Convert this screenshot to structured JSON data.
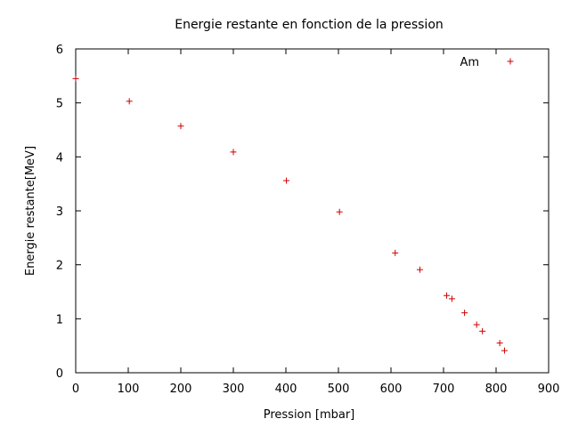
{
  "chart_data": {
    "type": "scatter",
    "title": "Energie restante en fonction de la pression",
    "xlabel": "Pression [mbar]",
    "ylabel": "Energie restante[MeV]",
    "xlim": [
      0,
      900
    ],
    "ylim": [
      0,
      6
    ],
    "xticks": [
      0,
      100,
      200,
      300,
      400,
      500,
      600,
      700,
      800,
      900
    ],
    "yticks": [
      0,
      1,
      2,
      3,
      4,
      5,
      6
    ],
    "grid": false,
    "legend_position": "top-right",
    "colors": {
      "series": "#cc0000",
      "axis": "#000000"
    },
    "series": [
      {
        "name": "Am",
        "marker": "plus",
        "points": [
          [
            0,
            5.45
          ],
          [
            102,
            5.03
          ],
          [
            200,
            4.57
          ],
          [
            300,
            4.09
          ],
          [
            401,
            3.56
          ],
          [
            502,
            2.98
          ],
          [
            608,
            2.22
          ],
          [
            655,
            1.91
          ],
          [
            706,
            1.43
          ],
          [
            716,
            1.37
          ],
          [
            740,
            1.11
          ],
          [
            763,
            0.89
          ],
          [
            774,
            0.77
          ],
          [
            807,
            0.55
          ],
          [
            816,
            0.41
          ]
        ]
      }
    ]
  }
}
